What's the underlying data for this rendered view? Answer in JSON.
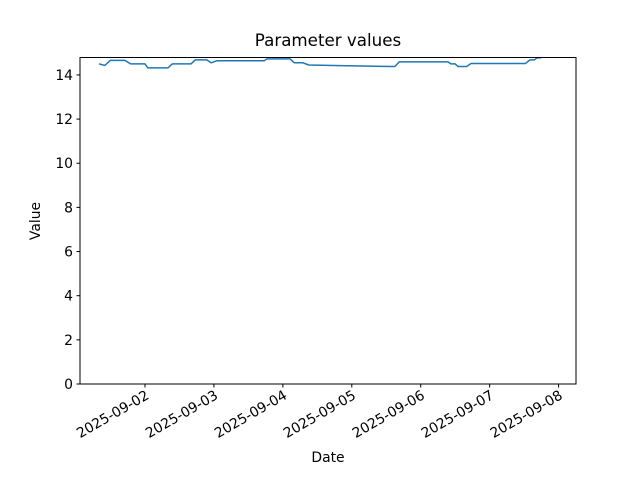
{
  "window": {
    "background": "#ffffff"
  },
  "chart_data": {
    "type": "line",
    "title": "Parameter values",
    "xlabel": "Date",
    "ylabel": "Value",
    "grid": false,
    "legend": "none",
    "markers": "none",
    "line_color": "#1f77b4",
    "line_width": 1.5,
    "axes_color": "#000000",
    "ylim": [
      0,
      14.79
    ],
    "y_ticks": [
      0,
      2,
      4,
      6,
      8,
      10,
      12,
      14
    ],
    "xlim": [
      "2025-09-01T01:22:00",
      "2025-09-08T06:04:00"
    ],
    "x_tick_rotation_deg": 30,
    "x_ticks": [
      {
        "label": "2025-09-02",
        "time": "2025-09-02T00:00:00"
      },
      {
        "label": "2025-09-03",
        "time": "2025-09-03T00:00:00"
      },
      {
        "label": "2025-09-04",
        "time": "2025-09-04T00:00:00"
      },
      {
        "label": "2025-09-05",
        "time": "2025-09-05T00:00:00"
      },
      {
        "label": "2025-09-06",
        "time": "2025-09-06T00:00:00"
      },
      {
        "label": "2025-09-07",
        "time": "2025-09-07T00:00:00"
      },
      {
        "label": "2025-09-08",
        "time": "2025-09-08T00:00:00"
      }
    ],
    "series": [
      {
        "name": "Parameter values",
        "points": [
          [
            "2025-09-01T08:00:00",
            14.5
          ],
          [
            "2025-09-01T10:00:00",
            14.43
          ],
          [
            "2025-09-01T12:00:00",
            14.66
          ],
          [
            "2025-09-01T17:00:00",
            14.66
          ],
          [
            "2025-09-01T19:00:00",
            14.5
          ],
          [
            "2025-09-02T00:00:00",
            14.5
          ],
          [
            "2025-09-02T01:00:00",
            14.32
          ],
          [
            "2025-09-02T08:00:00",
            14.32
          ],
          [
            "2025-09-02T09:30:00",
            14.5
          ],
          [
            "2025-09-02T16:00:00",
            14.5
          ],
          [
            "2025-09-02T17:30:00",
            14.68
          ],
          [
            "2025-09-02T21:30:00",
            14.68
          ],
          [
            "2025-09-02T23:00:00",
            14.55
          ],
          [
            "2025-09-03T01:00:00",
            14.64
          ],
          [
            "2025-09-03T17:30:00",
            14.64
          ],
          [
            "2025-09-03T18:30:00",
            14.73
          ],
          [
            "2025-09-04T02:30:00",
            14.73
          ],
          [
            "2025-09-04T04:00:00",
            14.55
          ],
          [
            "2025-09-04T07:00:00",
            14.55
          ],
          [
            "2025-09-04T09:00:00",
            14.45
          ],
          [
            "2025-09-04T20:00:00",
            14.42
          ],
          [
            "2025-09-05T15:00:00",
            14.38
          ],
          [
            "2025-09-05T16:30:00",
            14.59
          ],
          [
            "2025-09-06T09:30:00",
            14.59
          ],
          [
            "2025-09-06T10:30:00",
            14.5
          ],
          [
            "2025-09-06T12:00:00",
            14.5
          ],
          [
            "2025-09-06T13:00:00",
            14.38
          ],
          [
            "2025-09-06T16:00:00",
            14.38
          ],
          [
            "2025-09-06T17:30:00",
            14.52
          ],
          [
            "2025-09-07T12:30:00",
            14.52
          ],
          [
            "2025-09-07T14:00:00",
            14.68
          ],
          [
            "2025-09-07T15:30:00",
            14.68
          ],
          [
            "2025-09-07T16:30:00",
            14.77
          ],
          [
            "2025-09-07T18:00:00",
            14.78
          ]
        ]
      }
    ]
  }
}
